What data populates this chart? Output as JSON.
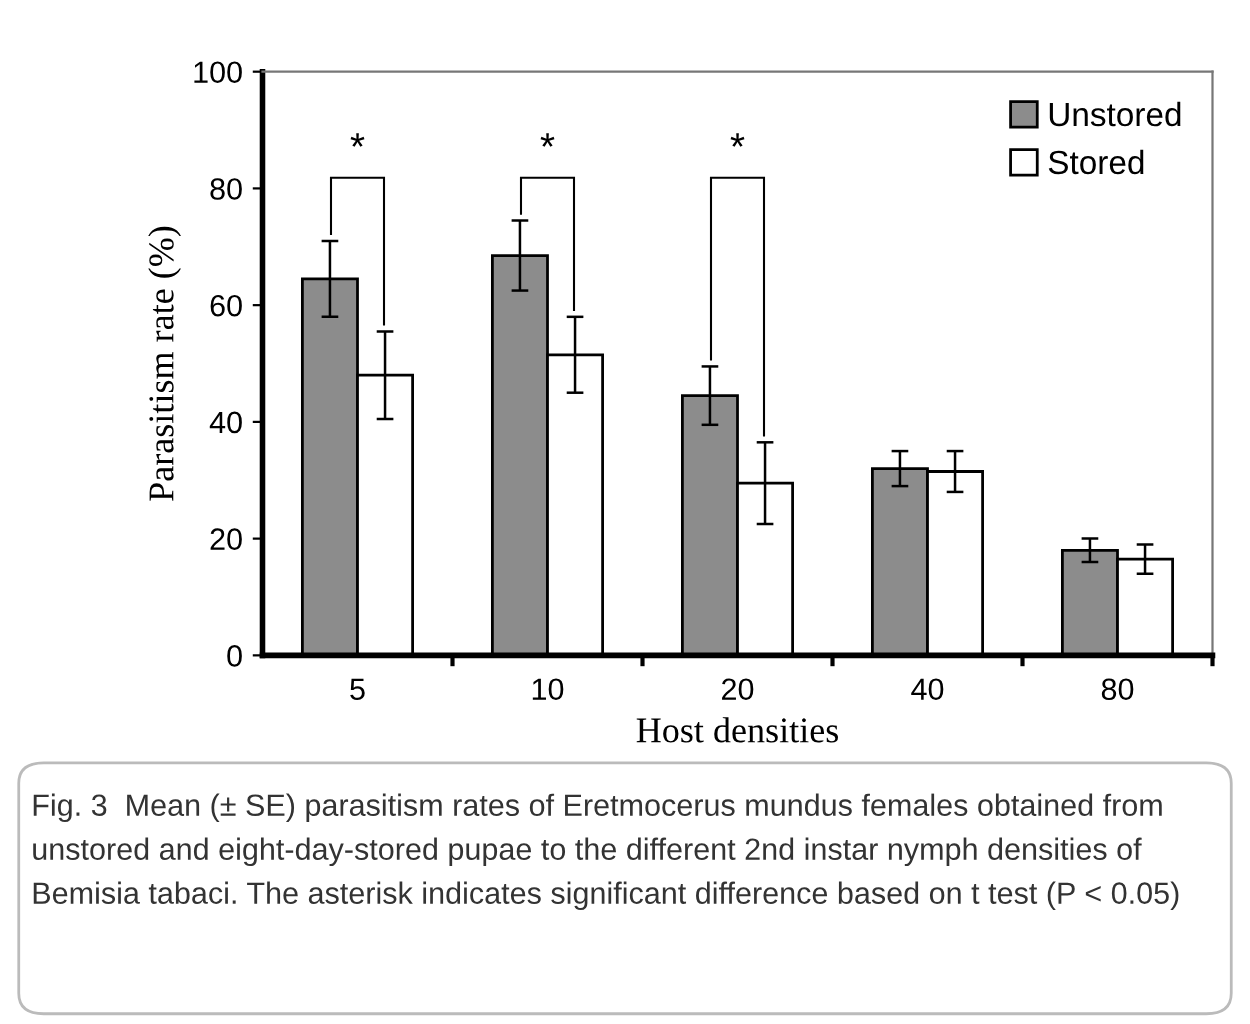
{
  "chart_data": {
    "type": "bar",
    "xlabel": "Host densities",
    "ylabel": "Parasitism rate (%)",
    "categories": [
      "5",
      "10",
      "20",
      "40",
      "80"
    ],
    "series": [
      {
        "name": "Unstored",
        "color": "#8c8c8c",
        "values": [
          64.5,
          68.5,
          44.5,
          32,
          18
        ],
        "errors": [
          6.5,
          6,
          5,
          3,
          2
        ]
      },
      {
        "name": "Stored",
        "color": "#ffffff",
        "values": [
          48,
          51.5,
          29.5,
          31.5,
          16.5
        ],
        "errors": [
          7.5,
          6.5,
          7,
          3.5,
          2.5
        ]
      }
    ],
    "ylim": [
      0,
      100
    ],
    "yticks": [
      0,
      20,
      40,
      60,
      80,
      100
    ],
    "grid": false,
    "legend": "top right",
    "annotations": [
      "*",
      "*",
      "*",
      "Fig. 3  Mean (± SE) parasitism rates of Eretmocerus mundus females obtained from unstored and eight-day-stored pupae to the different 2nd instar nymph densities of Bemisia tabaci. The asterisk indicates significant difference based on t test (P < 0.05)"
    ]
  }
}
